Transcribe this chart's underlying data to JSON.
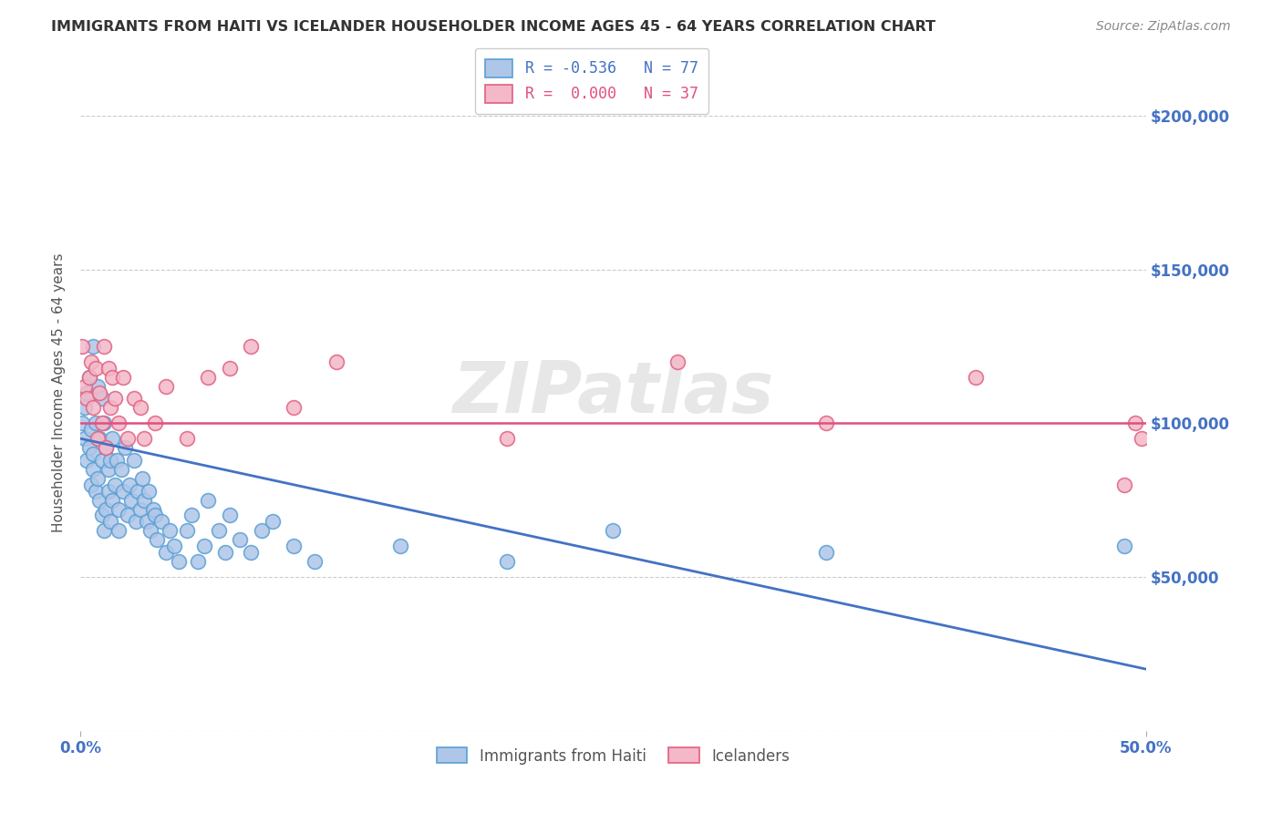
{
  "title": "IMMIGRANTS FROM HAITI VS ICELANDER HOUSEHOLDER INCOME AGES 45 - 64 YEARS CORRELATION CHART",
  "source": "Source: ZipAtlas.com",
  "ylabel": "Householder Income Ages 45 - 64 years",
  "xlim": [
    0.0,
    0.5
  ],
  "ylim": [
    0,
    220000
  ],
  "yticks": [
    0,
    50000,
    100000,
    150000,
    200000
  ],
  "ytick_labels": [
    "",
    "$50,000",
    "$100,000",
    "$150,000",
    "$200,000"
  ],
  "background_color": "#ffffff",
  "grid_color": "#cccccc",
  "watermark": "ZIPatlas",
  "haiti_color": "#aec6e8",
  "iceland_color": "#f4b8c8",
  "haiti_edge": "#5a9fd4",
  "iceland_edge": "#e06080",
  "trend_haiti_color": "#4472c4",
  "trend_iceland_color": "#e05080",
  "haiti_trend_x0": 0.0,
  "haiti_trend_y0": 95000,
  "haiti_trend_x1": 0.5,
  "haiti_trend_y1": 20000,
  "iceland_trend_y": 100000,
  "haiti_scatter_x": [
    0.001,
    0.002,
    0.002,
    0.003,
    0.003,
    0.004,
    0.004,
    0.005,
    0.005,
    0.006,
    0.006,
    0.006,
    0.007,
    0.007,
    0.008,
    0.008,
    0.009,
    0.009,
    0.01,
    0.01,
    0.01,
    0.011,
    0.011,
    0.012,
    0.012,
    0.013,
    0.013,
    0.014,
    0.014,
    0.015,
    0.015,
    0.016,
    0.017,
    0.018,
    0.018,
    0.019,
    0.02,
    0.021,
    0.022,
    0.023,
    0.024,
    0.025,
    0.026,
    0.027,
    0.028,
    0.029,
    0.03,
    0.031,
    0.032,
    0.033,
    0.034,
    0.035,
    0.036,
    0.038,
    0.04,
    0.042,
    0.044,
    0.046,
    0.05,
    0.052,
    0.055,
    0.058,
    0.06,
    0.065,
    0.068,
    0.07,
    0.075,
    0.08,
    0.085,
    0.09,
    0.1,
    0.11,
    0.15,
    0.2,
    0.25,
    0.35,
    0.49
  ],
  "haiti_scatter_y": [
    100000,
    95000,
    105000,
    88000,
    110000,
    92000,
    115000,
    80000,
    98000,
    125000,
    90000,
    85000,
    100000,
    78000,
    112000,
    82000,
    95000,
    75000,
    108000,
    70000,
    88000,
    100000,
    65000,
    92000,
    72000,
    85000,
    78000,
    88000,
    68000,
    95000,
    75000,
    80000,
    88000,
    72000,
    65000,
    85000,
    78000,
    92000,
    70000,
    80000,
    75000,
    88000,
    68000,
    78000,
    72000,
    82000,
    75000,
    68000,
    78000,
    65000,
    72000,
    70000,
    62000,
    68000,
    58000,
    65000,
    60000,
    55000,
    65000,
    70000,
    55000,
    60000,
    75000,
    65000,
    58000,
    70000,
    62000,
    58000,
    65000,
    68000,
    60000,
    55000,
    60000,
    55000,
    65000,
    58000,
    60000
  ],
  "iceland_scatter_x": [
    0.001,
    0.002,
    0.003,
    0.004,
    0.005,
    0.006,
    0.007,
    0.008,
    0.009,
    0.01,
    0.011,
    0.012,
    0.013,
    0.014,
    0.015,
    0.016,
    0.018,
    0.02,
    0.022,
    0.025,
    0.028,
    0.03,
    0.035,
    0.04,
    0.05,
    0.06,
    0.07,
    0.08,
    0.1,
    0.12,
    0.2,
    0.28,
    0.35,
    0.42,
    0.49,
    0.495,
    0.498
  ],
  "iceland_scatter_y": [
    125000,
    112000,
    108000,
    115000,
    120000,
    105000,
    118000,
    95000,
    110000,
    100000,
    125000,
    92000,
    118000,
    105000,
    115000,
    108000,
    100000,
    115000,
    95000,
    108000,
    105000,
    95000,
    100000,
    112000,
    95000,
    115000,
    118000,
    125000,
    105000,
    120000,
    95000,
    120000,
    100000,
    115000,
    80000,
    100000,
    95000
  ]
}
